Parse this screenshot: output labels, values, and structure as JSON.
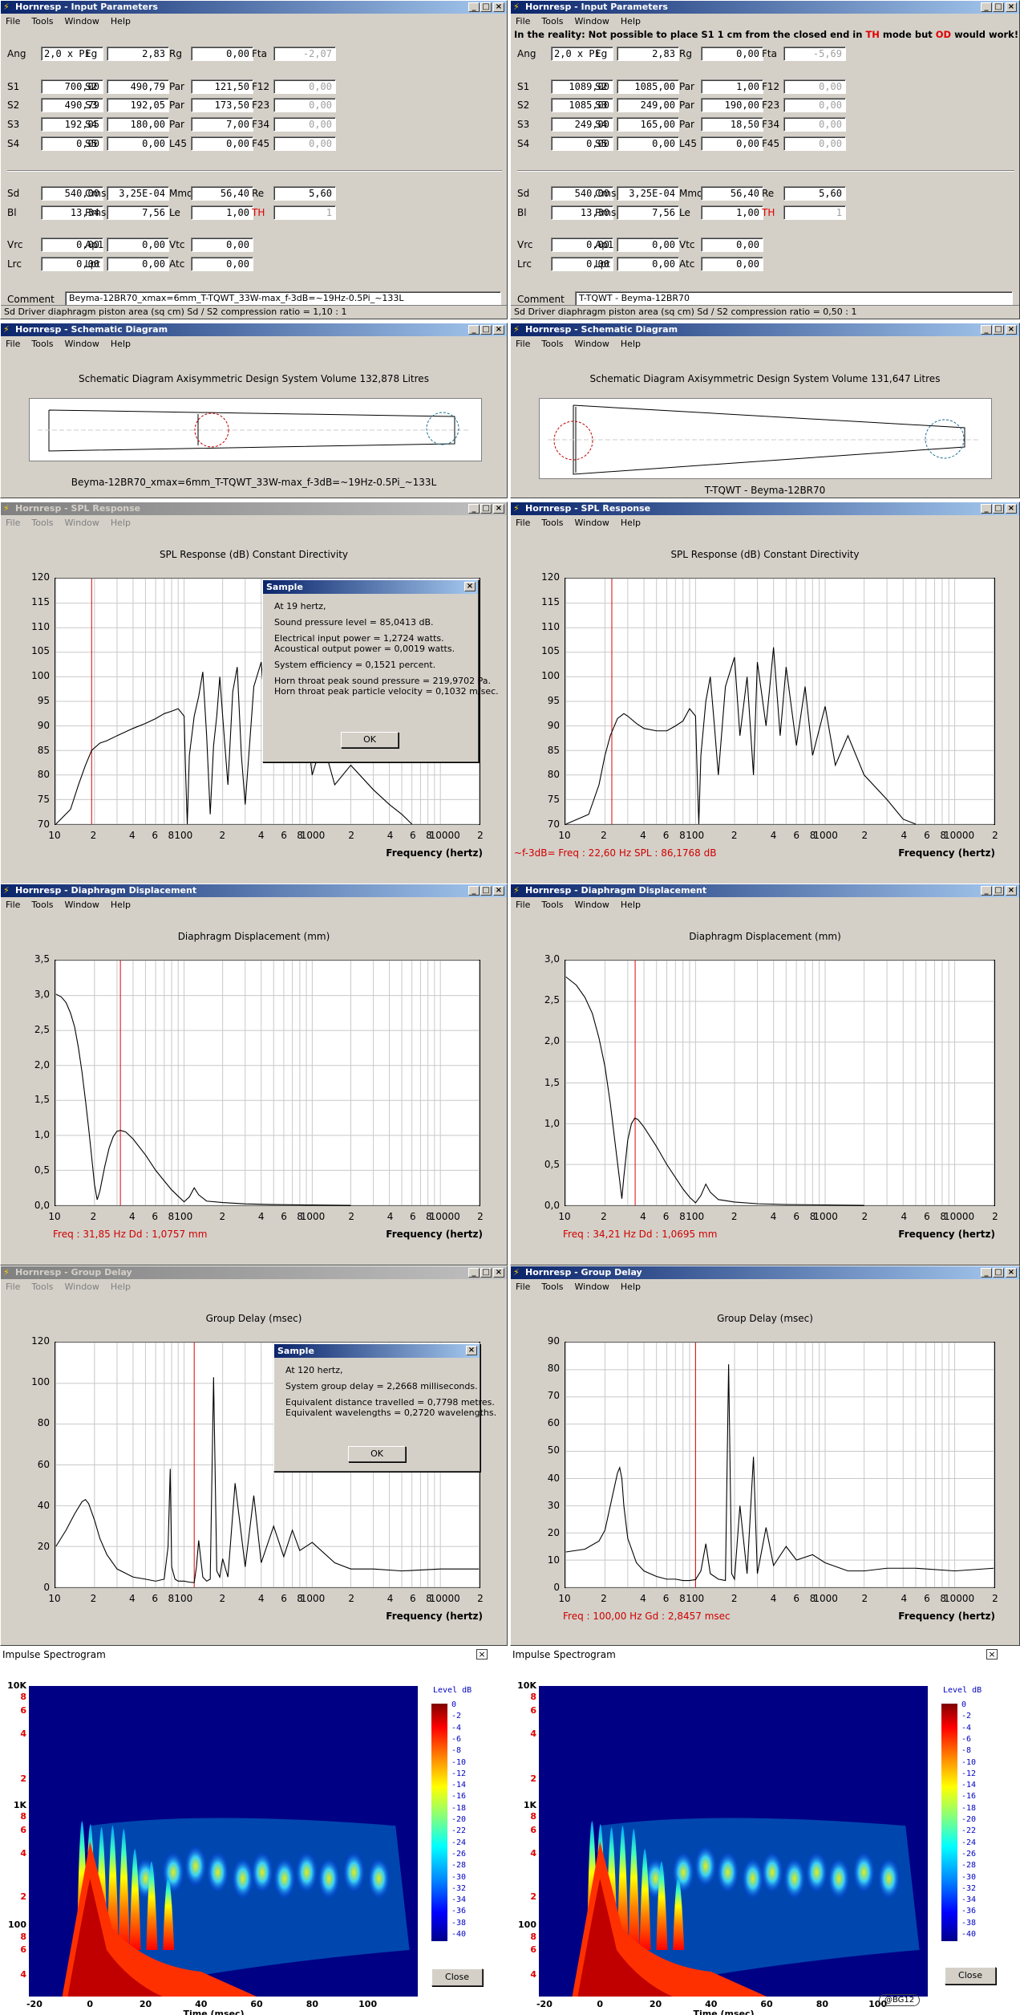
{
  "ip_left": {
    "title": "Hornresp - Input Parameters",
    "menu": [
      "File",
      "Tools",
      "Window",
      "Help"
    ],
    "rows": [
      [
        [
          "Ang",
          "2,0 x Pi"
        ],
        [
          "Eg",
          "2,83"
        ],
        [
          "Rg",
          "0,00"
        ],
        [
          "Fta",
          "-2,07"
        ]
      ],
      [
        [
          "S1",
          "700,00"
        ],
        [
          "S2",
          "490,79"
        ],
        [
          "Par",
          "121,50"
        ],
        [
          "F12",
          "0,00"
        ]
      ],
      [
        [
          "S2",
          "490,79"
        ],
        [
          "S3",
          "192,05"
        ],
        [
          "Par",
          "173,50"
        ],
        [
          "F23",
          "0,00"
        ]
      ],
      [
        [
          "S3",
          "192,05"
        ],
        [
          "S4",
          "180,00"
        ],
        [
          "Par",
          "7,00"
        ],
        [
          "F34",
          "0,00"
        ]
      ],
      [
        [
          "S4",
          "0,00"
        ],
        [
          "S5",
          "0,00"
        ],
        [
          "L45",
          "0,00"
        ],
        [
          "F45",
          "0,00"
        ]
      ],
      [
        [
          "Sd",
          "540,00"
        ],
        [
          "Cms",
          "3,25E-04"
        ],
        [
          "Mmd",
          "56,40"
        ],
        [
          "Re",
          "5,60"
        ]
      ],
      [
        [
          "Bl",
          "13,34"
        ],
        [
          "Rms",
          "7,56"
        ],
        [
          "Le",
          "1,00"
        ],
        [
          "TH",
          "1"
        ]
      ],
      [
        [
          "Vrc",
          "0,00"
        ],
        [
          "Ap1",
          "0,00"
        ],
        [
          "Vtc",
          "0,00"
        ]
      ],
      [
        [
          "Lrc",
          "0,00"
        ],
        [
          "Lpt",
          "0,00"
        ],
        [
          "Atc",
          "0,00"
        ]
      ]
    ],
    "comment_label": "Comment",
    "comment": "Beyma-12BR70_xmax=6mm_T-TQWT_33W-max_f-3dB=~19Hz-0.5Pi_~133L",
    "status": "Sd  Driver diaphragm piston area  (sq cm)   Sd / S2 compression ratio = 1,10 : 1"
  },
  "ip_right": {
    "title": "Hornresp - Input Parameters",
    "menu": [
      "File",
      "Tools",
      "Window",
      "Help"
    ],
    "warning": "In the reality: Not possible to place S1 1 cm from the closed end in TH mode but OD would work!",
    "rows": [
      [
        [
          "Ang",
          "2,0 x Pi"
        ],
        [
          "Eg",
          "2,83"
        ],
        [
          "Rg",
          "0,00"
        ],
        [
          "Fta",
          "-5,69"
        ]
      ],
      [
        [
          "S1",
          "1089,00"
        ],
        [
          "S2",
          "1085,00"
        ],
        [
          "Par",
          "1,00"
        ],
        [
          "F12",
          "0,00"
        ]
      ],
      [
        [
          "S2",
          "1085,00"
        ],
        [
          "S3",
          "249,00"
        ],
        [
          "Par",
          "190,00"
        ],
        [
          "F23",
          "0,00"
        ]
      ],
      [
        [
          "S3",
          "249,00"
        ],
        [
          "S4",
          "165,00"
        ],
        [
          "Par",
          "18,50"
        ],
        [
          "F34",
          "0,00"
        ]
      ],
      [
        [
          "S4",
          "0,00"
        ],
        [
          "S5",
          "0,00"
        ],
        [
          "L45",
          "0,00"
        ],
        [
          "F45",
          "0,00"
        ]
      ],
      [
        [
          "Sd",
          "540,00"
        ],
        [
          "Cms",
          "3,25E-04"
        ],
        [
          "Mmd",
          "56,40"
        ],
        [
          "Re",
          "5,60"
        ]
      ],
      [
        [
          "Bl",
          "13,30"
        ],
        [
          "Rms",
          "7,56"
        ],
        [
          "Le",
          "1,00"
        ],
        [
          "TH",
          "1"
        ]
      ],
      [
        [
          "Vrc",
          "0,00"
        ],
        [
          "Ap1",
          "0,00"
        ],
        [
          "Vtc",
          "0,00"
        ]
      ],
      [
        [
          "Lrc",
          "0,00"
        ],
        [
          "Lpt",
          "0,00"
        ],
        [
          "Atc",
          "0,00"
        ]
      ]
    ],
    "comment_label": "Comment",
    "comment": "T-TQWT - Beyma-12BR70",
    "status": "Sd  Driver diaphragm piston area  (sq cm)   Sd / S2 compression ratio = 0,50 : 1"
  },
  "sch_left": {
    "title": "Hornresp - Schematic Diagram",
    "menu": [
      "File",
      "Tools",
      "Window",
      "Help"
    ],
    "heading": "Schematic Diagram   Axisymmetric Design   System Volume 132,878 Litres",
    "caption": "Beyma-12BR70_xmax=6mm_T-TQWT_33W-max_f-3dB=~19Hz-0.5Pi_~133L"
  },
  "sch_right": {
    "title": "Hornresp - Schematic Diagram",
    "menu": [
      "File",
      "Tools",
      "Window",
      "Help"
    ],
    "heading": "Schematic Diagram   Axisymmetric Design   System Volume 131,647 Litres",
    "caption": "T-TQWT - Beyma-12BR70"
  },
  "spl_left": {
    "title": "Hornresp - SPL Response",
    "menu": [
      "File",
      "Tools",
      "Window",
      "Help"
    ],
    "heading": "SPL Response (dB)   Constant Directivity",
    "xaxis": "Frequency (hertz)",
    "dialog": {
      "title": "Sample",
      "lines": [
        "At 19 hertz,",
        "",
        "Sound pressure level = 85,0413 dB.",
        "",
        "Electrical input power = 1,2724 watts.",
        "Acoustical output power = 0,0019 watts.",
        "",
        "System efficiency = 0,1521 percent.",
        "",
        "Horn throat peak sound pressure = 219,9702 Pa.",
        "Horn throat peak particle velocity = 0,1032 m/sec."
      ],
      "ok": "OK"
    }
  },
  "spl_right": {
    "title": "Hornresp - SPL Response",
    "menu": [
      "File",
      "Tools",
      "Window",
      "Help"
    ],
    "heading": "SPL Response (dB)   Constant Directivity",
    "xaxis": "Frequency (hertz)",
    "readout": "~f-3dB=      Freq : 22,60 Hz       SPL : 86,1768 dB"
  },
  "dd_left": {
    "title": "Hornresp - Diaphragm Displacement",
    "menu": [
      "File",
      "Tools",
      "Window",
      "Help"
    ],
    "heading": "Diaphragm Displacement (mm)",
    "xaxis": "Frequency (hertz)",
    "readout": "Freq : 31,85 Hz       Dd : 1,0757 mm"
  },
  "dd_right": {
    "title": "Hornresp - Diaphragm Displacement",
    "menu": [
      "File",
      "Tools",
      "Window",
      "Help"
    ],
    "heading": "Diaphragm Displacement (mm)",
    "xaxis": "Frequency (hertz)",
    "readout": "Freq : 34,21 Hz       Dd : 1,0695 mm"
  },
  "gd_left": {
    "title": "Hornresp - Group Delay",
    "menu": [
      "File",
      "Tools",
      "Window",
      "Help"
    ],
    "heading": "Group Delay (msec)",
    "xaxis": "Frequency (hertz)",
    "dialog": {
      "title": "Sample",
      "lines": [
        "At 120 hertz,",
        "",
        "System group delay = 2,2668 milliseconds.",
        "",
        "Equivalent distance travelled = 0,7798 metres.",
        "Equivalent wavelengths = 0,2720 wavelengths."
      ],
      "ok": "OK"
    }
  },
  "gd_right": {
    "title": "Hornresp - Group Delay",
    "menu": [
      "File",
      "Tools",
      "Window",
      "Help"
    ],
    "heading": "Group Delay (msec)",
    "xaxis": "Frequency (hertz)",
    "readout": "Freq : 100,00 Hz       Gd : 2,8457 msec"
  },
  "spec_left": {
    "title": "Impulse Spectrogram",
    "close": "Close",
    "level": "Level  dB",
    "xaxis": "Time (msec)"
  },
  "spec_right": {
    "title": "Impulse Spectrogram",
    "close": "Close",
    "level": "Level  dB",
    "xaxis": "Time (msec)",
    "watermark": "@BG12"
  },
  "spec_axes": {
    "y": [
      [
        "10K",
        false
      ],
      [
        "8",
        true
      ],
      [
        "6",
        true
      ],
      [
        "4",
        true
      ],
      [
        "2",
        true
      ],
      [
        "1K",
        false
      ],
      [
        "8",
        true
      ],
      [
        "6",
        true
      ],
      [
        "4",
        true
      ],
      [
        "2",
        true
      ],
      [
        "100",
        false
      ],
      [
        "8",
        true
      ],
      [
        "6",
        true
      ],
      [
        "4",
        true
      ]
    ],
    "x": [
      "-20",
      "0",
      "20",
      "40",
      "60",
      "80",
      "100"
    ],
    "levels": [
      "0",
      "-2",
      "-4",
      "-6",
      "-8",
      "-10",
      "-12",
      "-14",
      "-16",
      "-18",
      "-20",
      "-22",
      "-24",
      "-26",
      "-28",
      "-30",
      "-32",
      "-34",
      "-36",
      "-38",
      "-40"
    ]
  },
  "x_ticks": [
    "10",
    "2",
    "4",
    "6",
    "8",
    "100",
    "2",
    "4",
    "6",
    "8",
    "1000",
    "2",
    "4",
    "6",
    "8",
    "10000",
    "2"
  ],
  "chart_data": [
    {
      "type": "line",
      "name": "SPL left",
      "title": "SPL Response (dB)   Constant Directivity",
      "xlabel": "Frequency (hertz)",
      "ylabel": "",
      "xscale": "log",
      "xlim": [
        10,
        20000
      ],
      "ylim": [
        70,
        120
      ],
      "yticks": [
        "120",
        "115",
        "110",
        "105",
        "100",
        "95",
        "90",
        "85",
        "80",
        "75",
        "70"
      ],
      "marker_hz": 19,
      "x": [
        10,
        13,
        15,
        17,
        19,
        22,
        25,
        30,
        40,
        50,
        60,
        70,
        80,
        90,
        100,
        103,
        106,
        110,
        120,
        130,
        140,
        150,
        160,
        170,
        180,
        190,
        200,
        220,
        240,
        260,
        280,
        300,
        350,
        400,
        450,
        500,
        600,
        700,
        800,
        900,
        1000,
        1200,
        1500,
        2000,
        3000,
        4000,
        5000,
        6000
      ],
      "values": [
        70,
        73,
        78,
        82,
        85,
        86.5,
        87,
        88,
        89.5,
        90.5,
        91.5,
        92.5,
        93,
        93.5,
        92,
        80,
        70,
        84,
        92,
        96,
        101,
        88,
        72,
        86,
        92,
        100,
        92,
        78,
        97,
        102,
        84,
        74,
        98,
        103,
        86,
        96,
        90,
        94,
        85,
        90,
        80,
        87,
        78,
        82,
        77,
        74,
        72,
        70
      ]
    },
    {
      "type": "line",
      "name": "SPL right",
      "title": "SPL Response (dB)   Constant Directivity",
      "xlabel": "Frequency (hertz)",
      "xscale": "log",
      "xlim": [
        10,
        20000
      ],
      "ylim": [
        70,
        120
      ],
      "yticks": [
        "120",
        "115",
        "110",
        "105",
        "100",
        "95",
        "90",
        "85",
        "80",
        "75",
        "70"
      ],
      "marker_hz": 22.6,
      "x": [
        10,
        15,
        18,
        20,
        22,
        25,
        28,
        30,
        35,
        40,
        50,
        60,
        70,
        80,
        90,
        100,
        103,
        106,
        110,
        120,
        130,
        140,
        150,
        170,
        200,
        220,
        250,
        280,
        300,
        350,
        400,
        450,
        500,
        600,
        700,
        800,
        1000,
        1200,
        1500,
        2000,
        3000,
        4000,
        5000
      ],
      "values": [
        68,
        72,
        78,
        84,
        88,
        91.5,
        92.5,
        92,
        90.5,
        89.5,
        89,
        89,
        90,
        91,
        93.5,
        92,
        80,
        70,
        84,
        95,
        100,
        90,
        80,
        98,
        104,
        88,
        100,
        80,
        103,
        90,
        106,
        88,
        102,
        86,
        98,
        84,
        94,
        82,
        88,
        80,
        75,
        71,
        69
      ]
    },
    {
      "type": "line",
      "name": "Displacement left",
      "title": "Diaphragm Displacement (mm)",
      "xlabel": "Frequency (hertz)",
      "xscale": "log",
      "xlim": [
        10,
        20000
      ],
      "ylim": [
        0,
        3.5
      ],
      "yticks": [
        "3,5",
        "3,0",
        "2,5",
        "2,0",
        "1,5",
        "1,0",
        "0,5",
        "0,0"
      ],
      "marker_hz": 31.85,
      "x": [
        10,
        11,
        12,
        13,
        14,
        15,
        16,
        17,
        18,
        19,
        20,
        21,
        22,
        24,
        26,
        28,
        30,
        32,
        35,
        40,
        50,
        60,
        70,
        80,
        90,
        100,
        110,
        120,
        130,
        150,
        200,
        300,
        500,
        1000,
        2000
      ],
      "values": [
        3.02,
        2.98,
        2.9,
        2.75,
        2.55,
        2.25,
        1.9,
        1.5,
        1.1,
        0.7,
        0.3,
        0.08,
        0.2,
        0.55,
        0.82,
        0.98,
        1.06,
        1.07,
        1.05,
        0.95,
        0.72,
        0.5,
        0.35,
        0.22,
        0.13,
        0.05,
        0.12,
        0.25,
        0.15,
        0.06,
        0.04,
        0.02,
        0.01,
        0.005,
        0
      ]
    },
    {
      "type": "line",
      "name": "Displacement right",
      "title": "Diaphragm Displacement (mm)",
      "xlabel": "Frequency (hertz)",
      "xscale": "log",
      "xlim": [
        10,
        20000
      ],
      "ylim": [
        0,
        3
      ],
      "yticks": [
        "3,0",
        "2,5",
        "2,0",
        "1,5",
        "1,0",
        "0,5",
        "0,0"
      ],
      "marker_hz": 34.21,
      "x": [
        10,
        12,
        14,
        16,
        18,
        20,
        22,
        24,
        26,
        27,
        28,
        30,
        32,
        34,
        36,
        40,
        50,
        60,
        70,
        80,
        90,
        100,
        110,
        120,
        130,
        150,
        200,
        300,
        500,
        1000,
        2000
      ],
      "values": [
        2.8,
        2.7,
        2.55,
        2.35,
        2.05,
        1.7,
        1.25,
        0.75,
        0.3,
        0.08,
        0.35,
        0.8,
        1.0,
        1.07,
        1.05,
        0.96,
        0.72,
        0.5,
        0.34,
        0.2,
        0.1,
        0.03,
        0.12,
        0.26,
        0.16,
        0.07,
        0.04,
        0.02,
        0.01,
        0.005,
        0
      ]
    },
    {
      "type": "line",
      "name": "Group delay left",
      "title": "Group Delay (msec)",
      "xlabel": "Frequency (hertz)",
      "xscale": "log",
      "xlim": [
        10,
        20000
      ],
      "ylim": [
        0,
        120
      ],
      "yticks": [
        "120",
        "100",
        "80",
        "60",
        "40",
        "20",
        "0"
      ],
      "marker_hz": 120,
      "x": [
        10,
        12,
        14,
        16,
        17,
        18,
        20,
        22,
        25,
        30,
        40,
        50,
        60,
        70,
        75,
        78,
        80,
        85,
        90,
        100,
        110,
        120,
        125,
        130,
        140,
        150,
        160,
        170,
        180,
        190,
        200,
        220,
        250,
        300,
        350,
        400,
        500,
        600,
        700,
        800,
        1000,
        1500,
        2000,
        3000,
        5000,
        10000,
        20000
      ],
      "values": [
        20,
        28,
        36,
        42,
        43,
        41,
        33,
        24,
        16,
        9,
        5,
        4,
        3,
        4,
        20,
        58,
        10,
        4,
        3,
        3,
        2.5,
        2.3,
        10,
        23,
        5,
        3,
        4,
        103,
        8,
        5,
        14,
        5,
        51,
        10,
        45,
        12,
        30,
        15,
        28,
        18,
        22,
        12,
        9,
        9,
        8,
        9,
        9
      ]
    },
    {
      "type": "line",
      "name": "Group delay right",
      "title": "Group Delay (msec)",
      "xlabel": "Frequency (hertz)",
      "xscale": "log",
      "xlim": [
        10,
        20000
      ],
      "ylim": [
        0,
        90
      ],
      "yticks": [
        "90",
        "80",
        "70",
        "60",
        "50",
        "40",
        "30",
        "20",
        "10",
        "0"
      ],
      "marker_hz": 100,
      "x": [
        10,
        14,
        18,
        20,
        22,
        25,
        26,
        27,
        28,
        30,
        35,
        40,
        50,
        60,
        70,
        80,
        90,
        100,
        110,
        120,
        130,
        150,
        170,
        180,
        190,
        200,
        220,
        250,
        280,
        300,
        350,
        400,
        500,
        600,
        800,
        1000,
        1500,
        2000,
        3000,
        5000,
        10000,
        20000
      ],
      "values": [
        13,
        14,
        17,
        21,
        30,
        42,
        44,
        40,
        30,
        18,
        9,
        6,
        4,
        3,
        3,
        2.5,
        2.5,
        2.8,
        6,
        16,
        5,
        3,
        2.5,
        82,
        5,
        3,
        30,
        5,
        48,
        5,
        22,
        8,
        15,
        10,
        12,
        9,
        6,
        6,
        7,
        7,
        6,
        7
      ]
    }
  ]
}
